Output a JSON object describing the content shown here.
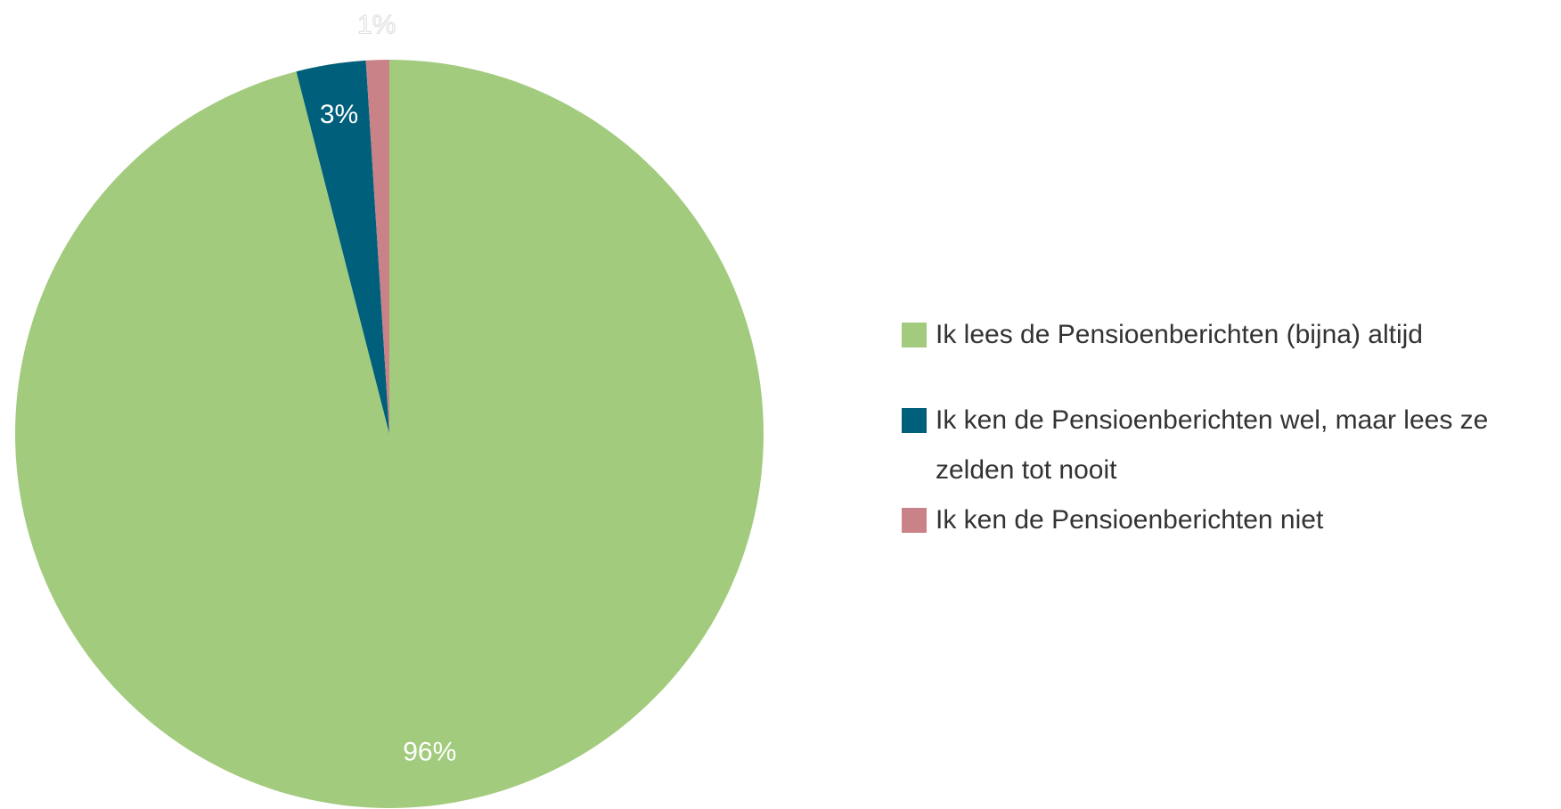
{
  "chart_data": {
    "type": "pie",
    "categories": [
      "Ik lees de Pensioenberichten (bijna) altijd",
      "Ik ken de Pensioenberichten wel, maar lees ze zelden tot nooit",
      "Ik ken de Pensioenberichten niet"
    ],
    "values": [
      96,
      3,
      1
    ],
    "value_labels": [
      "96%",
      "3%",
      "1%"
    ],
    "colors": [
      "#a2cb7e",
      "#005f7a",
      "#c98288"
    ],
    "legend": "right"
  }
}
